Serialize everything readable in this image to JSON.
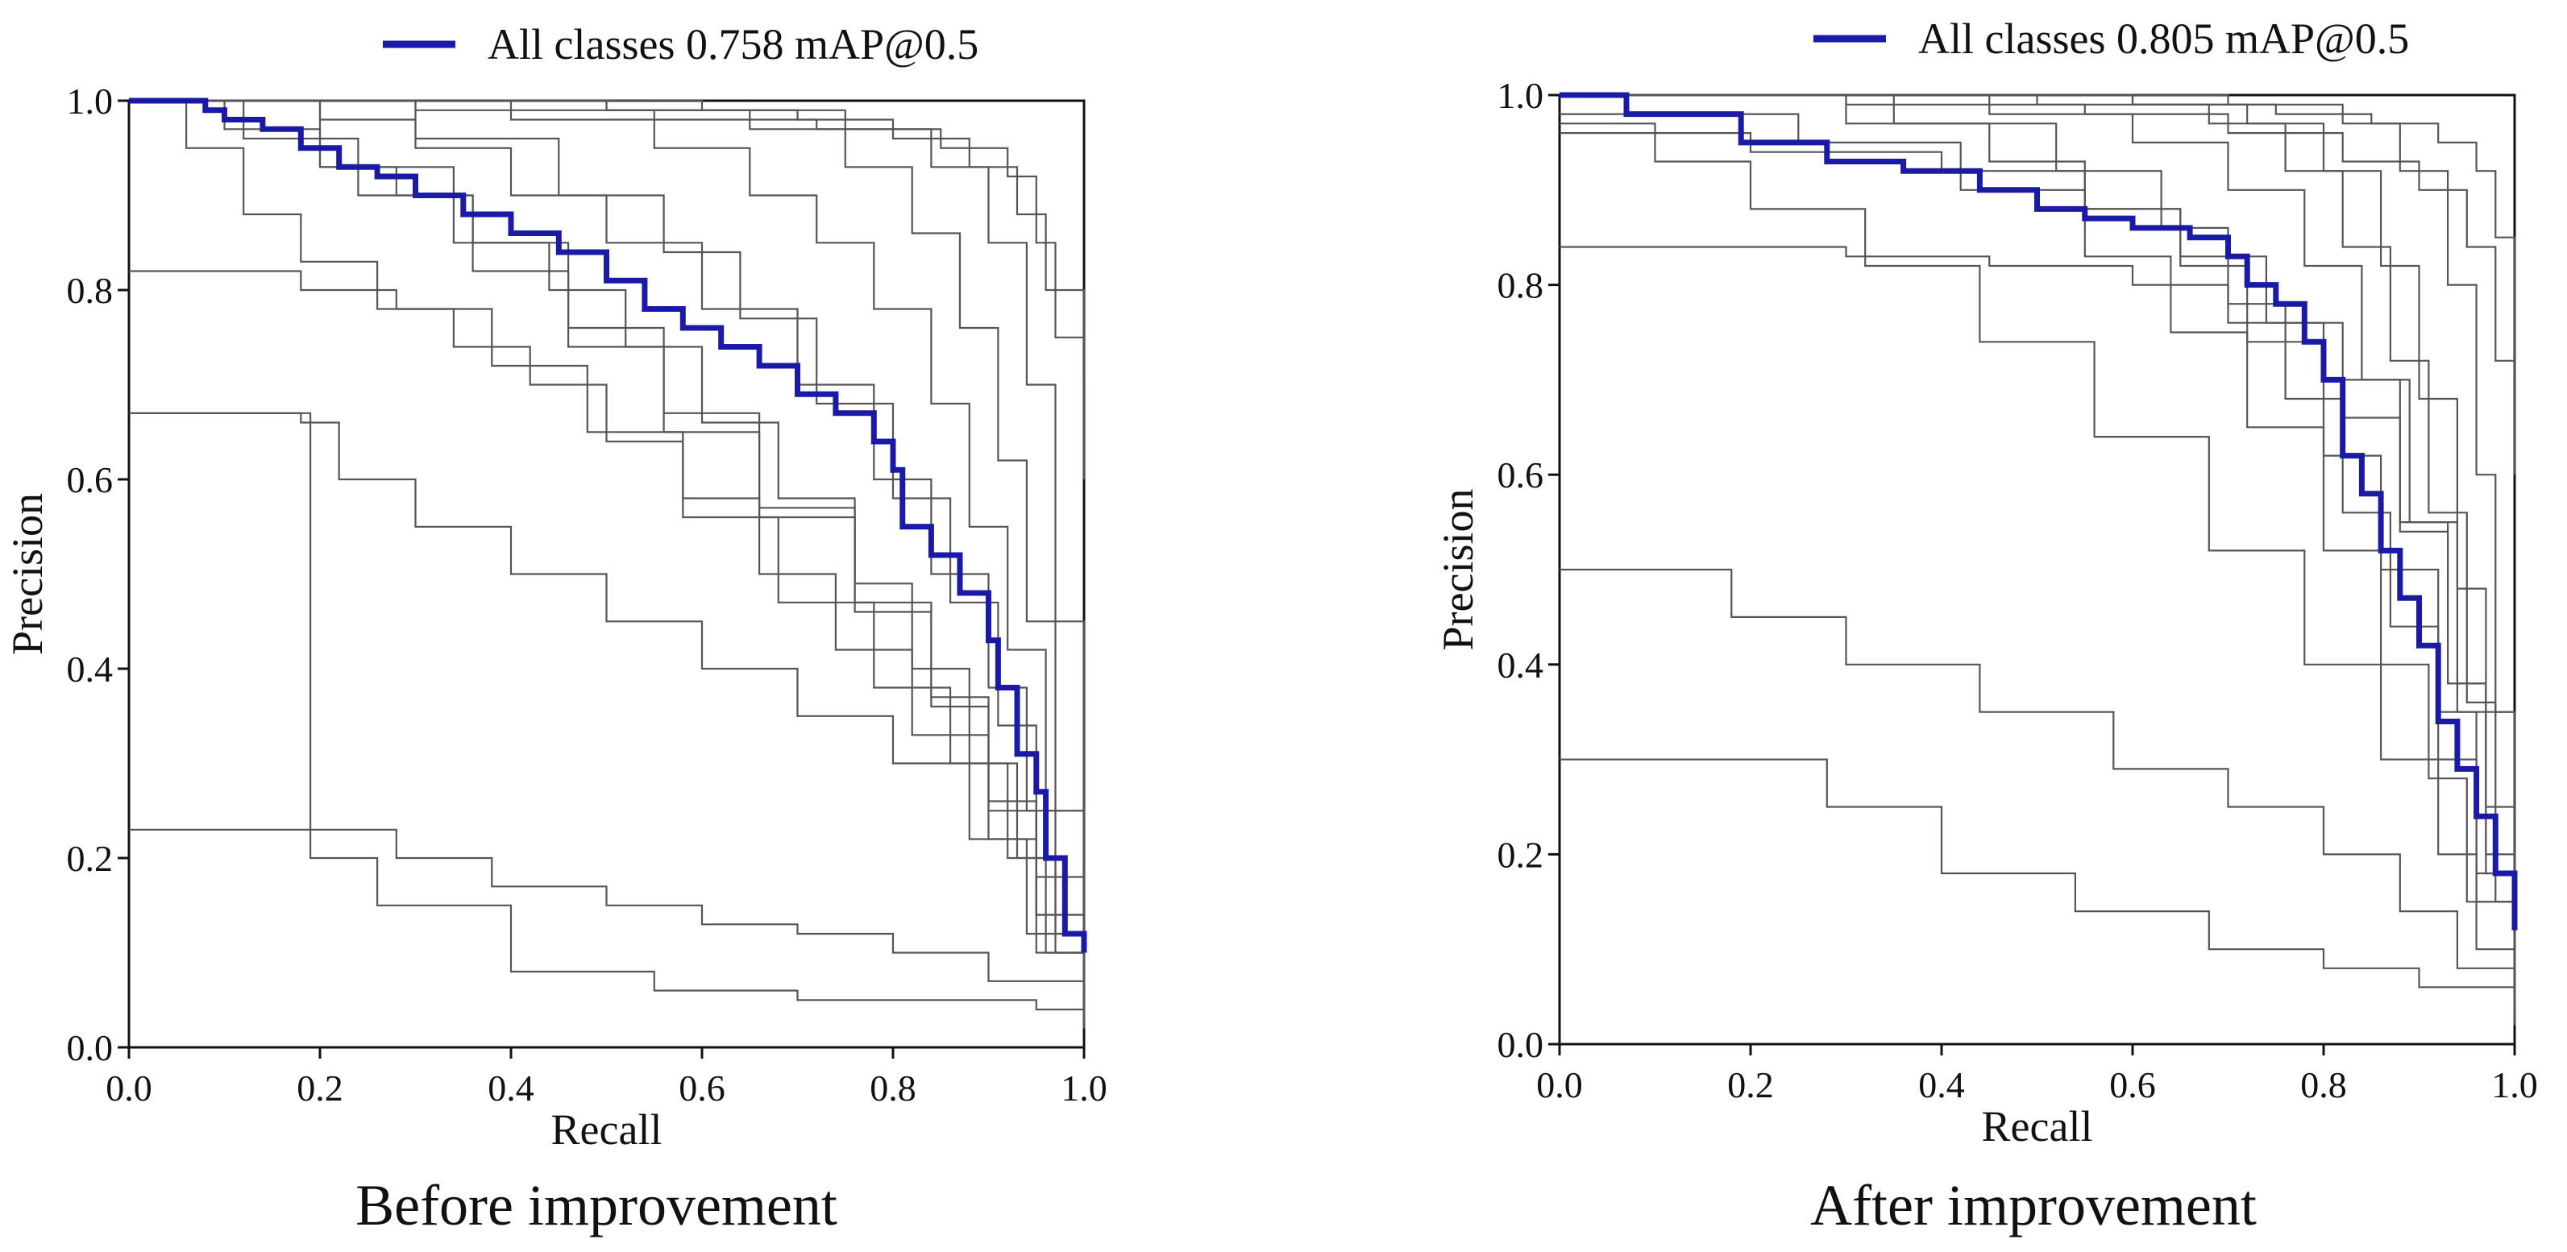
{
  "figure": {
    "left_caption": "Before improvement",
    "right_caption": "After improvement"
  },
  "colors": {
    "all_classes_line": "#1a1aa6",
    "class_lines": "#555555",
    "axis": "#111111",
    "background": "#ffffff"
  },
  "chart_data": [
    {
      "type": "line",
      "title": "",
      "caption": "Before improvement",
      "xlabel": "Recall",
      "ylabel": "Precision",
      "xlim": [
        0,
        1
      ],
      "ylim": [
        0,
        1
      ],
      "xticks": [
        "0.0",
        "0.2",
        "0.4",
        "0.6",
        "0.8",
        "1.0"
      ],
      "yticks": [
        "0.0",
        "0.2",
        "0.4",
        "0.6",
        "0.8",
        "1.0"
      ],
      "grid": false,
      "legend": {
        "position": "top-center",
        "entries": [
          "All classes 0.758 mAP@0.5"
        ]
      },
      "series": [
        {
          "name": "All classes 0.758 mAP@0.5",
          "highlight": true,
          "x": [
            0,
            0.08,
            0.1,
            0.14,
            0.18,
            0.22,
            0.26,
            0.3,
            0.35,
            0.4,
            0.45,
            0.5,
            0.54,
            0.58,
            0.62,
            0.66,
            0.7,
            0.74,
            0.78,
            0.8,
            0.81,
            0.84,
            0.87,
            0.9,
            0.91,
            0.93,
            0.95,
            0.96,
            0.98,
            1.0
          ],
          "y": [
            1.0,
            0.99,
            0.98,
            0.97,
            0.95,
            0.93,
            0.92,
            0.9,
            0.88,
            0.86,
            0.84,
            0.81,
            0.78,
            0.76,
            0.74,
            0.72,
            0.69,
            0.67,
            0.64,
            0.61,
            0.55,
            0.52,
            0.48,
            0.43,
            0.38,
            0.31,
            0.27,
            0.2,
            0.12,
            0.1
          ]
        },
        {
          "name": "class 1",
          "x": [
            0,
            0.3,
            0.55,
            0.72,
            0.85,
            0.92,
            0.95,
            0.97,
            1.0
          ],
          "y": [
            1.0,
            0.99,
            0.98,
            0.97,
            0.95,
            0.92,
            0.85,
            0.75,
            0.7
          ]
        },
        {
          "name": "class 2",
          "x": [
            0,
            0.25,
            0.5,
            0.7,
            0.8,
            0.88,
            0.93,
            0.96,
            1.0
          ],
          "y": [
            1.0,
            1.0,
            0.99,
            0.98,
            0.96,
            0.93,
            0.88,
            0.8,
            0.6
          ]
        },
        {
          "name": "class 3",
          "x": [
            0,
            0.1,
            0.2,
            0.28,
            0.36,
            0.44,
            0.52,
            0.6,
            0.68,
            0.76,
            0.82,
            0.88,
            0.93,
            0.97,
            1.0
          ],
          "y": [
            1.0,
            0.97,
            0.93,
            0.9,
            0.85,
            0.8,
            0.74,
            0.66,
            0.58,
            0.49,
            0.4,
            0.3,
            0.2,
            0.1,
            0.02
          ]
        },
        {
          "name": "class 4",
          "x": [
            0,
            0.06,
            0.12,
            0.18,
            0.26,
            0.34,
            0.42,
            0.5,
            0.58,
            0.66,
            0.74,
            0.82,
            0.9,
            0.95,
            1.0
          ],
          "y": [
            1.0,
            0.95,
            0.88,
            0.83,
            0.78,
            0.74,
            0.7,
            0.64,
            0.58,
            0.5,
            0.42,
            0.33,
            0.22,
            0.1,
            0.02
          ]
        },
        {
          "name": "class 5",
          "x": [
            0,
            0.08,
            0.1,
            0.18,
            0.28,
            0.38,
            0.48,
            0.58,
            0.68,
            0.78,
            0.86,
            0.92,
            0.96,
            1.0
          ],
          "y": [
            0.82,
            0.82,
            0.82,
            0.8,
            0.78,
            0.72,
            0.65,
            0.56,
            0.47,
            0.38,
            0.3,
            0.2,
            0.1,
            0.02
          ]
        },
        {
          "name": "class 6",
          "x": [
            0,
            0.1,
            0.18,
            0.22,
            0.3,
            0.4,
            0.5,
            0.6,
            0.7,
            0.8,
            0.88,
            0.94,
            1.0
          ],
          "y": [
            0.67,
            0.67,
            0.66,
            0.6,
            0.55,
            0.5,
            0.45,
            0.4,
            0.35,
            0.3,
            0.22,
            0.12,
            0.02
          ]
        },
        {
          "name": "class 7",
          "x": [
            0,
            0.18,
            0.19,
            0.28,
            0.38,
            0.5,
            0.6,
            0.7,
            0.8,
            0.9,
            1.0
          ],
          "y": [
            0.67,
            0.67,
            0.23,
            0.2,
            0.17,
            0.15,
            0.13,
            0.12,
            0.1,
            0.07,
            0.02
          ]
        },
        {
          "name": "class 8",
          "x": [
            0,
            0.19,
            0.26,
            0.4,
            0.55,
            0.7,
            0.85,
            0.95,
            1.0
          ],
          "y": [
            0.23,
            0.2,
            0.15,
            0.08,
            0.06,
            0.05,
            0.05,
            0.04,
            0.02
          ]
        },
        {
          "name": "class 9",
          "x": [
            0,
            0.2,
            0.3,
            0.4,
            0.5,
            0.6,
            0.7,
            0.78,
            0.84,
            0.9,
            0.94,
            0.97,
            1.0
          ],
          "y": [
            1.0,
            0.98,
            0.95,
            0.9,
            0.85,
            0.78,
            0.7,
            0.6,
            0.5,
            0.38,
            0.25,
            0.12,
            0.03
          ]
        },
        {
          "name": "class 10",
          "x": [
            0,
            0.12,
            0.24,
            0.36,
            0.46,
            0.56,
            0.66,
            0.76,
            0.84,
            0.9,
            0.95,
            1.0
          ],
          "y": [
            1.0,
            0.96,
            0.9,
            0.82,
            0.74,
            0.65,
            0.56,
            0.46,
            0.36,
            0.25,
            0.14,
            0.02
          ]
        },
        {
          "name": "class 11",
          "x": [
            0,
            0.4,
            0.55,
            0.65,
            0.72,
            0.78,
            0.84,
            0.88,
            0.92,
            0.96,
            1.0
          ],
          "y": [
            1.0,
            0.98,
            0.95,
            0.9,
            0.85,
            0.78,
            0.68,
            0.55,
            0.42,
            0.25,
            0.05
          ]
        },
        {
          "name": "class 12",
          "x": [
            0,
            0.3,
            0.45,
            0.56,
            0.64,
            0.72,
            0.8,
            0.86,
            0.91,
            0.95,
            1.0
          ],
          "y": [
            1.0,
            0.96,
            0.9,
            0.84,
            0.77,
            0.68,
            0.58,
            0.47,
            0.34,
            0.18,
            0.03
          ]
        },
        {
          "name": "class 13",
          "x": [
            0,
            0.5,
            0.65,
            0.75,
            0.82,
            0.87,
            0.91,
            0.94,
            0.97,
            1.0
          ],
          "y": [
            1.0,
            0.99,
            0.97,
            0.93,
            0.86,
            0.76,
            0.62,
            0.45,
            0.25,
            0.05
          ]
        },
        {
          "name": "class 14",
          "x": [
            0,
            0.2,
            0.34,
            0.46,
            0.56,
            0.66,
            0.76,
            0.84,
            0.9,
            0.95,
            1.0
          ],
          "y": [
            1.0,
            0.93,
            0.85,
            0.76,
            0.67,
            0.57,
            0.47,
            0.37,
            0.26,
            0.14,
            0.02
          ]
        },
        {
          "name": "class 15",
          "x": [
            0,
            0.6,
            0.75,
            0.84,
            0.9,
            0.94,
            0.97,
            1.0
          ],
          "y": [
            1.0,
            0.99,
            0.97,
            0.93,
            0.85,
            0.7,
            0.45,
            0.1
          ]
        }
      ]
    },
    {
      "type": "line",
      "title": "",
      "caption": "After improvement",
      "xlabel": "Recall",
      "ylabel": "Precision",
      "xlim": [
        0,
        1
      ],
      "ylim": [
        0,
        1
      ],
      "xticks": [
        "0.0",
        "0.2",
        "0.4",
        "0.6",
        "0.8",
        "1.0"
      ],
      "yticks": [
        "0.0",
        "0.2",
        "0.4",
        "0.6",
        "0.8",
        "1.0"
      ],
      "grid": false,
      "legend": {
        "position": "top-center",
        "entries": [
          "All classes 0.805 mAP@0.5"
        ]
      },
      "series": [
        {
          "name": "All classes 0.805 mAP@0.5",
          "highlight": true,
          "x": [
            0,
            0.07,
            0.19,
            0.28,
            0.36,
            0.44,
            0.5,
            0.55,
            0.6,
            0.66,
            0.7,
            0.72,
            0.75,
            0.78,
            0.8,
            0.82,
            0.84,
            0.86,
            0.88,
            0.9,
            0.92,
            0.94,
            0.96,
            0.98,
            1.0
          ],
          "y": [
            1.0,
            0.98,
            0.95,
            0.93,
            0.92,
            0.9,
            0.88,
            0.87,
            0.86,
            0.85,
            0.83,
            0.8,
            0.78,
            0.74,
            0.7,
            0.62,
            0.58,
            0.52,
            0.47,
            0.42,
            0.34,
            0.29,
            0.24,
            0.18,
            0.12
          ]
        },
        {
          "name": "class 1",
          "x": [
            0,
            0.4,
            0.6,
            0.75,
            0.85,
            0.92,
            0.96,
            0.98,
            1.0
          ],
          "y": [
            1.0,
            1.0,
            0.99,
            0.98,
            0.97,
            0.95,
            0.92,
            0.85,
            0.7
          ]
        },
        {
          "name": "class 2",
          "x": [
            0,
            0.3,
            0.55,
            0.7,
            0.82,
            0.9,
            0.95,
            0.98,
            1.0
          ],
          "y": [
            1.0,
            0.99,
            0.98,
            0.96,
            0.93,
            0.9,
            0.84,
            0.72,
            0.6
          ]
        },
        {
          "name": "class 3",
          "x": [
            0,
            0.2,
            0.4,
            0.55,
            0.65,
            0.74,
            0.82,
            0.88,
            0.93,
            0.97,
            1.0
          ],
          "y": [
            0.96,
            0.94,
            0.92,
            0.88,
            0.83,
            0.76,
            0.66,
            0.54,
            0.38,
            0.2,
            0.03
          ]
        },
        {
          "name": "class 4",
          "x": [
            0,
            0.19,
            0.3,
            0.45,
            0.6,
            0.7,
            0.8,
            0.88,
            0.94,
            1.0
          ],
          "y": [
            0.84,
            0.84,
            0.83,
            0.82,
            0.8,
            0.76,
            0.7,
            0.55,
            0.35,
            0.05
          ]
        },
        {
          "name": "class 5",
          "x": [
            0,
            0.07,
            0.08,
            0.18,
            0.3,
            0.44,
            0.58,
            0.7,
            0.8,
            0.88,
            0.94,
            1.0
          ],
          "y": [
            0.5,
            0.5,
            0.5,
            0.45,
            0.4,
            0.35,
            0.29,
            0.25,
            0.2,
            0.14,
            0.08,
            0.02
          ]
        },
        {
          "name": "class 6",
          "x": [
            0,
            0.18,
            0.28,
            0.4,
            0.54,
            0.68,
            0.8,
            0.9,
            1.0
          ],
          "y": [
            0.3,
            0.3,
            0.25,
            0.18,
            0.14,
            0.1,
            0.08,
            0.06,
            0.02
          ]
        },
        {
          "name": "class 7",
          "x": [
            0,
            0.3,
            0.45,
            0.55,
            0.65,
            0.72,
            0.8,
            0.86,
            0.92,
            0.96,
            1.0
          ],
          "y": [
            1.0,
            0.97,
            0.93,
            0.88,
            0.82,
            0.74,
            0.62,
            0.5,
            0.35,
            0.18,
            0.03
          ]
        },
        {
          "name": "class 8",
          "x": [
            0,
            0.45,
            0.6,
            0.7,
            0.78,
            0.84,
            0.89,
            0.93,
            0.97,
            1.0
          ],
          "y": [
            1.0,
            0.98,
            0.95,
            0.9,
            0.82,
            0.7,
            0.55,
            0.38,
            0.18,
            0.04
          ]
        },
        {
          "name": "class 9",
          "x": [
            0,
            0.5,
            0.68,
            0.76,
            0.82,
            0.87,
            0.91,
            0.95,
            0.98,
            1.0
          ],
          "y": [
            1.0,
            0.99,
            0.97,
            0.92,
            0.84,
            0.72,
            0.56,
            0.36,
            0.15,
            0.03
          ]
        },
        {
          "name": "class 10",
          "x": [
            0,
            0.35,
            0.52,
            0.63,
            0.7,
            0.76,
            0.82,
            0.87,
            0.92,
            0.96,
            1.0
          ],
          "y": [
            1.0,
            0.97,
            0.92,
            0.86,
            0.78,
            0.68,
            0.56,
            0.44,
            0.3,
            0.15,
            0.02
          ]
        },
        {
          "name": "class 11",
          "x": [
            0,
            0.6,
            0.72,
            0.8,
            0.86,
            0.9,
            0.94,
            0.97,
            1.0
          ],
          "y": [
            1.0,
            0.99,
            0.97,
            0.92,
            0.82,
            0.68,
            0.48,
            0.25,
            0.05
          ]
        },
        {
          "name": "class 12",
          "x": [
            0,
            0.25,
            0.42,
            0.55,
            0.64,
            0.72,
            0.8,
            0.86,
            0.91,
            0.95,
            1.0
          ],
          "y": [
            0.98,
            0.95,
            0.9,
            0.83,
            0.75,
            0.65,
            0.52,
            0.4,
            0.28,
            0.15,
            0.02
          ]
        },
        {
          "name": "class 13",
          "x": [
            0,
            0.7,
            0.82,
            0.88,
            0.93,
            0.96,
            0.98,
            1.0
          ],
          "y": [
            1.0,
            0.99,
            0.97,
            0.92,
            0.8,
            0.6,
            0.35,
            0.08
          ]
        },
        {
          "name": "class 14",
          "x": [
            0,
            0.1,
            0.2,
            0.32,
            0.44,
            0.56,
            0.68,
            0.78,
            0.86,
            0.92,
            0.96,
            1.0
          ],
          "y": [
            0.97,
            0.93,
            0.88,
            0.82,
            0.74,
            0.64,
            0.52,
            0.4,
            0.3,
            0.2,
            0.1,
            0.02
          ]
        }
      ]
    }
  ]
}
